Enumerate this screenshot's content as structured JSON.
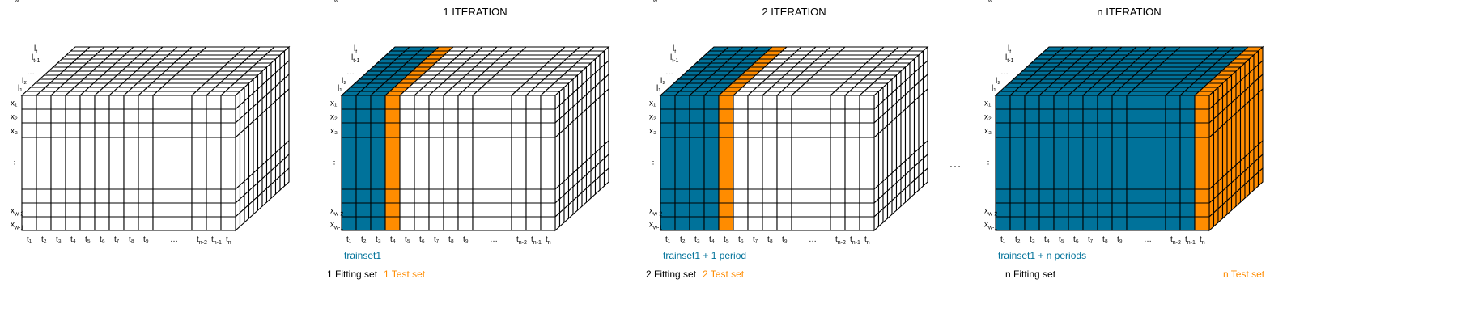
{
  "colors": {
    "fit": "#00729A",
    "test": "#FF8C00",
    "line": "#000000"
  },
  "ellipsis": "…",
  "row_labels": [
    "x₁",
    "x₂",
    "x₃",
    "⋮",
    "xw-2",
    "xw-1",
    "xw"
  ],
  "layer_labels": [
    "l₁",
    "l₂",
    "…",
    "lt-1",
    "lt"
  ],
  "col_labels": [
    "t₁",
    "t₂",
    "t₃",
    "t₄",
    "t₅",
    "t₆",
    "t₇",
    "t₈",
    "t₉",
    "…",
    "tn-2",
    "tn-1",
    "tn"
  ],
  "panels": [
    {
      "title": "",
      "fit_cols": 0,
      "test_col": null,
      "test_to_end": false,
      "train_label": "",
      "fit_label": "",
      "test_label": ""
    },
    {
      "title": "1 ITERATION",
      "fit_cols": 3,
      "test_col": 3,
      "test_to_end": false,
      "train_label": "trainset1",
      "fit_label": "1 Fitting set",
      "test_label": "1 Test set"
    },
    {
      "title": "2 ITERATION",
      "fit_cols": 4,
      "test_col": 4,
      "test_to_end": false,
      "train_label": "trainset1 + 1 period",
      "fit_label": "2 Fitting set",
      "test_label": "2 Test set"
    },
    {
      "title": "n ITERATION",
      "fit_cols": 12,
      "test_col": 12,
      "test_to_end": true,
      "train_label": "trainset1 + n periods",
      "fit_label": "n Fitting set",
      "test_label": "n Test set"
    }
  ]
}
